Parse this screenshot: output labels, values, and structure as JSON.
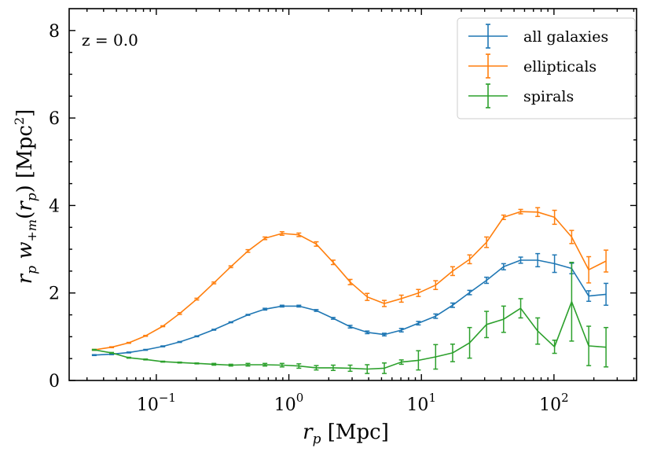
{
  "chart_data": {
    "type": "line",
    "title": "",
    "annotation": "z = 0.0",
    "xlabel": "r_p [Mpc]",
    "ylabel": "r_p w_{+m}(r_p) [Mpc^2]",
    "xscale": "log",
    "xlim": [
      0.022,
      420
    ],
    "ylim": [
      0,
      8.5
    ],
    "yticks": [
      0,
      2,
      4,
      6,
      8
    ],
    "xticks": [
      {
        "value": 0.1,
        "base": "10",
        "exp": "−1"
      },
      {
        "value": 1,
        "base": "10",
        "exp": "0"
      },
      {
        "value": 10,
        "base": "10",
        "exp": "1"
      },
      {
        "value": 100,
        "base": "10",
        "exp": "2"
      }
    ],
    "legend_position": "top-right",
    "x": [
      0.034,
      0.046,
      0.062,
      0.083,
      0.112,
      0.15,
      0.202,
      0.272,
      0.365,
      0.491,
      0.66,
      0.888,
      1.19,
      1.61,
      2.16,
      2.9,
      3.9,
      5.25,
      7.06,
      9.49,
      12.8,
      17.2,
      23.1,
      31.0,
      41.7,
      56.1,
      75.4,
      101,
      136,
      183,
      247
    ],
    "series": [
      {
        "name": "all galaxies",
        "color": "#1f77b4",
        "values": [
          0.58,
          0.6,
          0.64,
          0.7,
          0.78,
          0.88,
          1.01,
          1.16,
          1.33,
          1.5,
          1.63,
          1.7,
          1.7,
          1.6,
          1.42,
          1.23,
          1.1,
          1.05,
          1.15,
          1.31,
          1.47,
          1.72,
          2.01,
          2.29,
          2.6,
          2.75,
          2.75,
          2.67,
          2.56,
          1.93,
          1.97
        ],
        "errors": [
          0.01,
          0.01,
          0.01,
          0.01,
          0.01,
          0.01,
          0.01,
          0.01,
          0.01,
          0.01,
          0.02,
          0.02,
          0.02,
          0.02,
          0.02,
          0.03,
          0.03,
          0.03,
          0.04,
          0.04,
          0.05,
          0.05,
          0.05,
          0.07,
          0.07,
          0.07,
          0.15,
          0.2,
          0.12,
          0.12,
          0.25
        ]
      },
      {
        "name": "ellipticals",
        "color": "#ff7f0e",
        "values": [
          0.7,
          0.76,
          0.86,
          1.02,
          1.24,
          1.53,
          1.86,
          2.23,
          2.6,
          2.96,
          3.25,
          3.36,
          3.33,
          3.12,
          2.7,
          2.25,
          1.91,
          1.76,
          1.87,
          2.0,
          2.18,
          2.5,
          2.77,
          3.16,
          3.73,
          3.86,
          3.85,
          3.73,
          3.28,
          2.53,
          2.73
        ],
        "errors": [
          0.01,
          0.01,
          0.01,
          0.01,
          0.01,
          0.02,
          0.02,
          0.02,
          0.02,
          0.03,
          0.03,
          0.04,
          0.04,
          0.05,
          0.05,
          0.06,
          0.08,
          0.07,
          0.08,
          0.08,
          0.1,
          0.1,
          0.1,
          0.12,
          0.05,
          0.05,
          0.1,
          0.16,
          0.15,
          0.3,
          0.25
        ]
      },
      {
        "name": "spirals",
        "color": "#2ca02c",
        "values": [
          0.7,
          0.63,
          0.52,
          0.48,
          0.43,
          0.41,
          0.39,
          0.37,
          0.35,
          0.36,
          0.36,
          0.35,
          0.33,
          0.29,
          0.29,
          0.28,
          0.26,
          0.28,
          0.42,
          0.46,
          0.54,
          0.63,
          0.86,
          1.28,
          1.4,
          1.65,
          1.13,
          0.77,
          1.8,
          0.79,
          0.76
        ],
        "errors": [
          0.01,
          0.01,
          0.01,
          0.01,
          0.01,
          0.01,
          0.01,
          0.02,
          0.02,
          0.03,
          0.03,
          0.04,
          0.05,
          0.05,
          0.06,
          0.07,
          0.1,
          0.12,
          0.05,
          0.22,
          0.28,
          0.2,
          0.35,
          0.3,
          0.3,
          0.22,
          0.3,
          0.15,
          0.9,
          0.45,
          0.45
        ]
      }
    ]
  }
}
